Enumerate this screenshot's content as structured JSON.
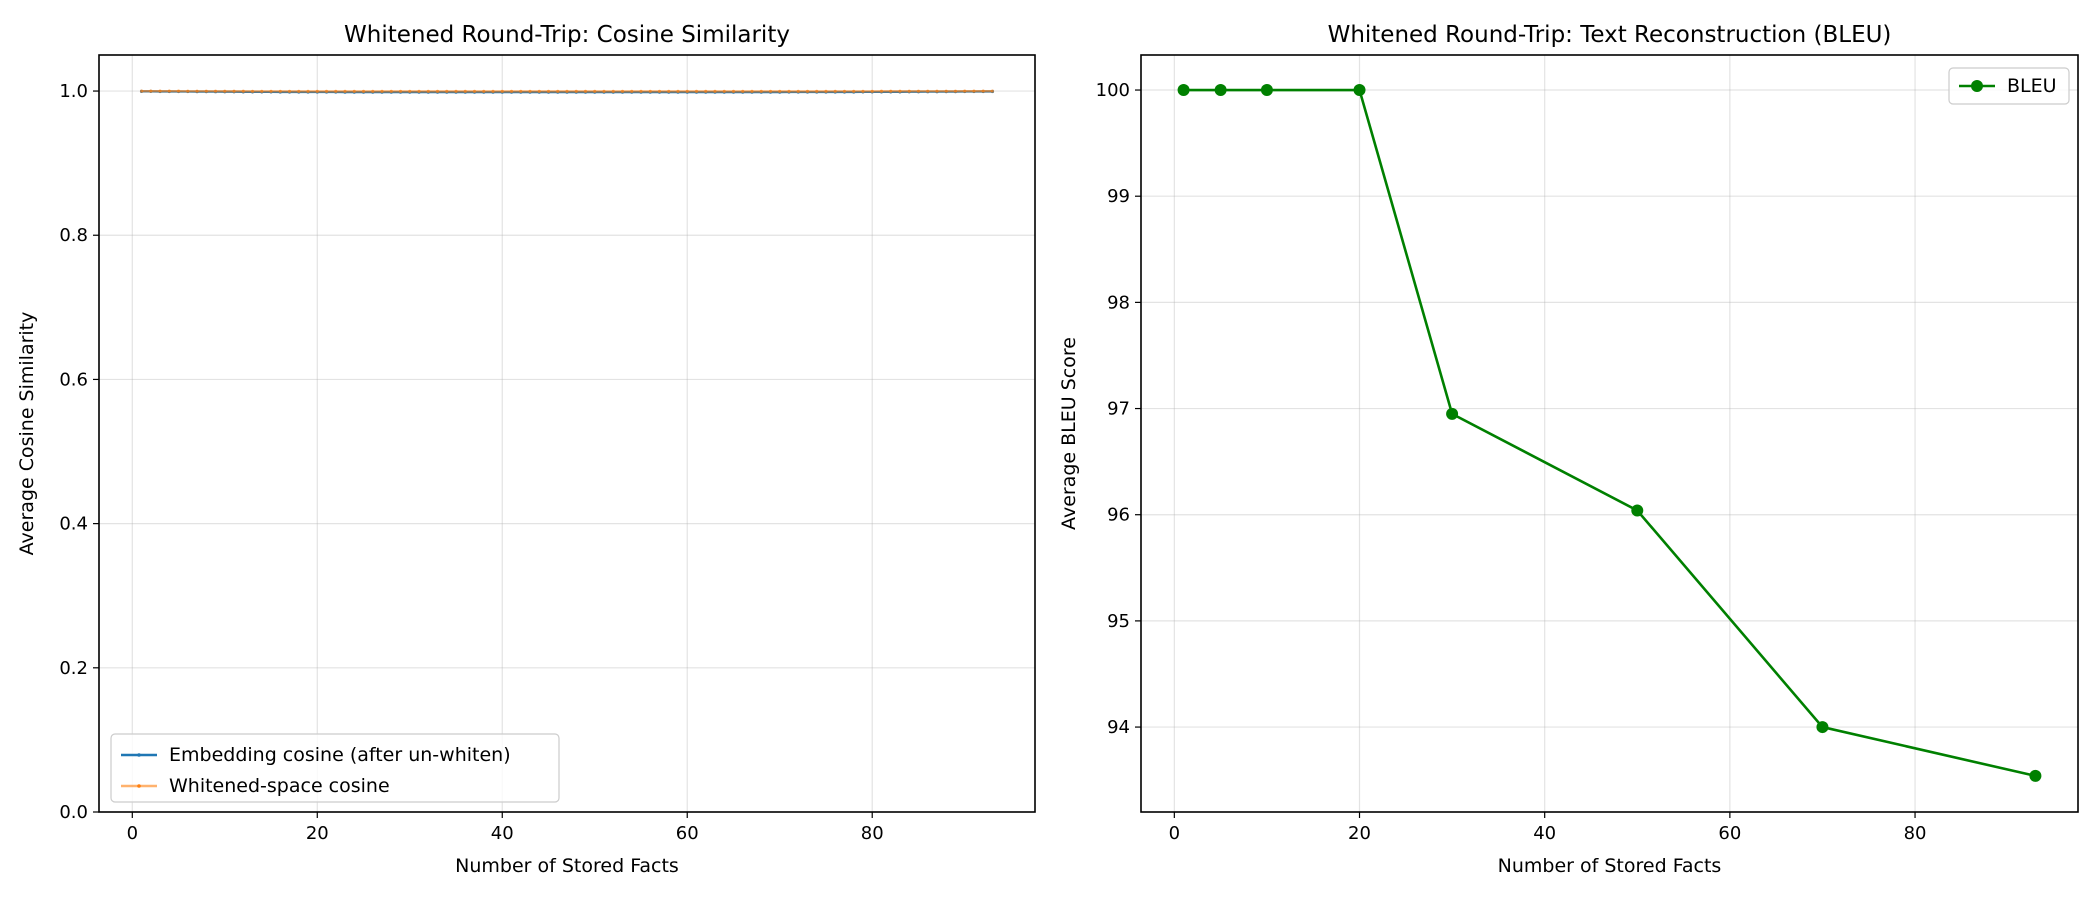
{
  "charts": [
    {
      "type": "line",
      "title": "Whitened Round-Trip: Cosine Similarity",
      "xlabel": "Number of Stored Facts",
      "ylabel": "Average Cosine Similarity",
      "xlim": [
        -3.6,
        97.6
      ],
      "ylim": [
        0.0,
        1.05
      ],
      "xticks": [
        0,
        20,
        40,
        60,
        80
      ],
      "yticks": [
        0.0,
        0.2,
        0.4,
        0.6,
        0.8,
        1.0
      ],
      "ytick_decimals": 1,
      "grid": true,
      "legend": "lower-left",
      "series": [
        {
          "name": "Embedding cosine (after un-whiten)",
          "color": "#1f77b4",
          "marker": "dot",
          "x": [
            1,
            2,
            3,
            4,
            5,
            6,
            7,
            8,
            9,
            10,
            11,
            12,
            13,
            14,
            15,
            16,
            17,
            18,
            19,
            20,
            21,
            22,
            23,
            24,
            25,
            26,
            27,
            28,
            29,
            30,
            31,
            32,
            33,
            34,
            35,
            36,
            37,
            38,
            39,
            40,
            41,
            42,
            43,
            44,
            45,
            46,
            47,
            48,
            49,
            50,
            51,
            52,
            53,
            54,
            55,
            56,
            57,
            58,
            59,
            60,
            61,
            62,
            63,
            64,
            65,
            66,
            67,
            68,
            69,
            70,
            71,
            72,
            73,
            74,
            75,
            76,
            77,
            78,
            79,
            80,
            81,
            82,
            83,
            84,
            85,
            86,
            87,
            88,
            89,
            90,
            91,
            92,
            93
          ],
          "y": [
            0.9995,
            0.9995,
            0.9994,
            0.9994,
            0.9993,
            0.9993,
            0.9992,
            0.9992,
            0.9991,
            0.999,
            0.999,
            0.9989,
            0.9989,
            0.9988,
            0.9988,
            0.9987,
            0.9987,
            0.9987,
            0.9986,
            0.9986,
            0.9986,
            0.9986,
            0.9985,
            0.9985,
            0.9985,
            0.9985,
            0.9985,
            0.9985,
            0.9985,
            0.9985,
            0.9985,
            0.9985,
            0.9985,
            0.9985,
            0.9985,
            0.9985,
            0.9985,
            0.9985,
            0.9985,
            0.9985,
            0.9985,
            0.9985,
            0.9985,
            0.9985,
            0.9985,
            0.9985,
            0.9985,
            0.9985,
            0.9985,
            0.9985,
            0.9985,
            0.9985,
            0.9985,
            0.9985,
            0.9985,
            0.9985,
            0.9985,
            0.9985,
            0.9985,
            0.9985,
            0.9985,
            0.9985,
            0.9985,
            0.9985,
            0.9985,
            0.9985,
            0.9985,
            0.9985,
            0.9985,
            0.9985,
            0.9986,
            0.9986,
            0.9986,
            0.9986,
            0.9986,
            0.9987,
            0.9987,
            0.9987,
            0.9988,
            0.9988,
            0.9988,
            0.9989,
            0.9989,
            0.999,
            0.999,
            0.9991,
            0.9991,
            0.9992,
            0.9992,
            0.9993,
            0.9993,
            0.9994,
            0.9994
          ]
        },
        {
          "name": "Whitened-space cosine",
          "color": "#ff7f0e",
          "marker": "dot",
          "x": [
            1,
            2,
            3,
            4,
            5,
            6,
            7,
            8,
            9,
            10,
            11,
            12,
            13,
            14,
            15,
            16,
            17,
            18,
            19,
            20,
            21,
            22,
            23,
            24,
            25,
            26,
            27,
            28,
            29,
            30,
            31,
            32,
            33,
            34,
            35,
            36,
            37,
            38,
            39,
            40,
            41,
            42,
            43,
            44,
            45,
            46,
            47,
            48,
            49,
            50,
            51,
            52,
            53,
            54,
            55,
            56,
            57,
            58,
            59,
            60,
            61,
            62,
            63,
            64,
            65,
            66,
            67,
            68,
            69,
            70,
            71,
            72,
            73,
            74,
            75,
            76,
            77,
            78,
            79,
            80,
            81,
            82,
            83,
            84,
            85,
            86,
            87,
            88,
            89,
            90,
            91,
            92,
            93
          ],
          "y": [
            0.9999,
            0.9999,
            0.9999,
            0.9999,
            0.9999,
            0.9998,
            0.9998,
            0.9998,
            0.9998,
            0.9997,
            0.9997,
            0.9997,
            0.9996,
            0.9996,
            0.9996,
            0.9996,
            0.9995,
            0.9995,
            0.9995,
            0.9995,
            0.9995,
            0.9995,
            0.9995,
            0.9995,
            0.9995,
            0.9995,
            0.9995,
            0.9995,
            0.9995,
            0.9995,
            0.9995,
            0.9995,
            0.9995,
            0.9995,
            0.9995,
            0.9995,
            0.9995,
            0.9995,
            0.9995,
            0.9995,
            0.9995,
            0.9995,
            0.9995,
            0.9995,
            0.9995,
            0.9995,
            0.9995,
            0.9995,
            0.9995,
            0.9995,
            0.9995,
            0.9995,
            0.9995,
            0.9995,
            0.9995,
            0.9995,
            0.9995,
            0.9995,
            0.9995,
            0.9995,
            0.9995,
            0.9995,
            0.9995,
            0.9995,
            0.9995,
            0.9995,
            0.9995,
            0.9995,
            0.9995,
            0.9995,
            0.9995,
            0.9995,
            0.9995,
            0.9995,
            0.9995,
            0.9996,
            0.9996,
            0.9996,
            0.9996,
            0.9996,
            0.9997,
            0.9997,
            0.9997,
            0.9997,
            0.9998,
            0.9998,
            0.9998,
            0.9998,
            0.9998,
            0.9999,
            0.9999,
            0.9999,
            0.9999
          ]
        }
      ]
    },
    {
      "type": "line",
      "title": "Whitened Round-Trip: Text Reconstruction (BLEU)",
      "xlabel": "Number of Stored Facts",
      "ylabel": "Average BLEU Score",
      "xlim": [
        -3.6,
        97.6
      ],
      "ylim": [
        93.2,
        100.33
      ],
      "xticks": [
        0,
        20,
        40,
        60,
        80
      ],
      "yticks": [
        94,
        95,
        96,
        97,
        98,
        99,
        100
      ],
      "ytick_decimals": 0,
      "grid": true,
      "legend": "top-right",
      "series": [
        {
          "name": "BLEU",
          "color": "#008000",
          "marker": "circle",
          "x": [
            1,
            5,
            10,
            20,
            30,
            50,
            70,
            93
          ],
          "y": [
            100,
            100,
            100,
            100,
            96.95,
            96.04,
            94.0,
            93.54
          ]
        }
      ]
    }
  ]
}
